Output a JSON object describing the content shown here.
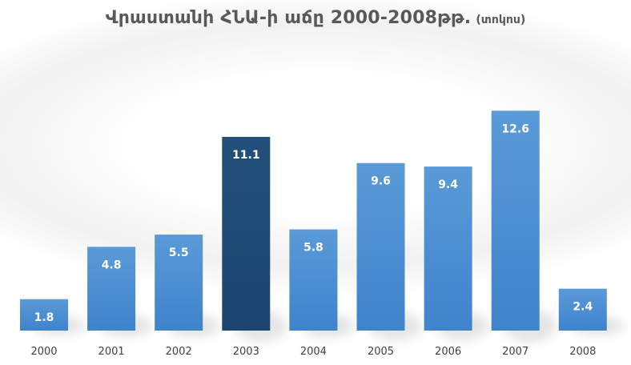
{
  "chart": {
    "title": "Վրաստանի ՀՆԱ-ի աճը 2000-2008թթ.",
    "unit": "(տոկոս)"
  },
  "colors": {
    "bar": "#4f8fd1",
    "bar_highlight": "#1f4e79",
    "label_text": "#ffffff",
    "axis_text": "#404040"
  },
  "chart_data": {
    "type": "bar",
    "title": "Վրաստանի ՀՆԱ-ի աճը 2000-2008թթ.",
    "unit": "(տոկոս)",
    "categories": [
      "2000",
      "2001",
      "2002",
      "2003",
      "2004",
      "2005",
      "2006",
      "2007",
      "2008"
    ],
    "values": [
      1.8,
      4.8,
      5.5,
      11.1,
      5.8,
      9.6,
      9.4,
      12.6,
      2.4
    ],
    "highlight": "2003",
    "grid": false,
    "legend": "none",
    "data_labels": "inside-end"
  }
}
